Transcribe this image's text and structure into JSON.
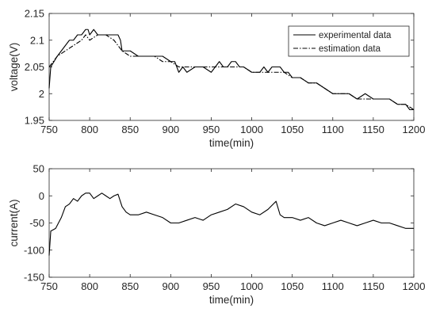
{
  "chart_data": [
    {
      "type": "line",
      "title": "",
      "xlabel": "time(min)",
      "ylabel": "voltage(V)",
      "xlim": [
        750,
        1200
      ],
      "ylim": [
        1.95,
        2.15
      ],
      "xticks": [
        750,
        800,
        850,
        900,
        950,
        1000,
        1050,
        1100,
        1150,
        1200
      ],
      "yticks": [
        1.95,
        2,
        2.05,
        2.1,
        2.15
      ],
      "ytick_labels": [
        "1.95",
        "2",
        "2.05",
        "2.1",
        "2.15"
      ],
      "grid": false,
      "legend_position": "top-right",
      "series": [
        {
          "name": "experimental data",
          "style": "solid",
          "color": "#000000",
          "points": [
            [
              750,
              2.01
            ],
            [
              752,
              2.05
            ],
            [
              756,
              2.06
            ],
            [
              760,
              2.07
            ],
            [
              765,
              2.08
            ],
            [
              770,
              2.09
            ],
            [
              775,
              2.1
            ],
            [
              780,
              2.1
            ],
            [
              785,
              2.11
            ],
            [
              790,
              2.11
            ],
            [
              795,
              2.12
            ],
            [
              798,
              2.12
            ],
            [
              800,
              2.11
            ],
            [
              805,
              2.12
            ],
            [
              810,
              2.11
            ],
            [
              815,
              2.11
            ],
            [
              820,
              2.11
            ],
            [
              825,
              2.11
            ],
            [
              830,
              2.11
            ],
            [
              835,
              2.11
            ],
            [
              838,
              2.1
            ],
            [
              840,
              2.08
            ],
            [
              850,
              2.08
            ],
            [
              860,
              2.07
            ],
            [
              870,
              2.07
            ],
            [
              880,
              2.07
            ],
            [
              890,
              2.07
            ],
            [
              900,
              2.06
            ],
            [
              905,
              2.06
            ],
            [
              910,
              2.04
            ],
            [
              915,
              2.05
            ],
            [
              920,
              2.04
            ],
            [
              930,
              2.05
            ],
            [
              940,
              2.05
            ],
            [
              950,
              2.04
            ],
            [
              955,
              2.05
            ],
            [
              960,
              2.06
            ],
            [
              965,
              2.05
            ],
            [
              970,
              2.05
            ],
            [
              975,
              2.06
            ],
            [
              980,
              2.06
            ],
            [
              985,
              2.05
            ],
            [
              990,
              2.05
            ],
            [
              1000,
              2.04
            ],
            [
              1005,
              2.04
            ],
            [
              1010,
              2.04
            ],
            [
              1015,
              2.05
            ],
            [
              1020,
              2.04
            ],
            [
              1025,
              2.05
            ],
            [
              1030,
              2.05
            ],
            [
              1035,
              2.05
            ],
            [
              1040,
              2.04
            ],
            [
              1045,
              2.04
            ],
            [
              1050,
              2.03
            ],
            [
              1060,
              2.03
            ],
            [
              1070,
              2.02
            ],
            [
              1080,
              2.02
            ],
            [
              1090,
              2.01
            ],
            [
              1100,
              2.0
            ],
            [
              1110,
              2.0
            ],
            [
              1120,
              2.0
            ],
            [
              1130,
              1.99
            ],
            [
              1140,
              2.0
            ],
            [
              1150,
              1.99
            ],
            [
              1160,
              1.99
            ],
            [
              1170,
              1.99
            ],
            [
              1180,
              1.98
            ],
            [
              1190,
              1.98
            ],
            [
              1195,
              1.97
            ],
            [
              1200,
              1.97
            ]
          ]
        },
        {
          "name": "estimation data",
          "style": "dashdot",
          "color": "#000000",
          "points": [
            [
              750,
              2.05
            ],
            [
              755,
              2.06
            ],
            [
              760,
              2.07
            ],
            [
              770,
              2.08
            ],
            [
              780,
              2.09
            ],
            [
              790,
              2.1
            ],
            [
              795,
              2.11
            ],
            [
              800,
              2.1
            ],
            [
              810,
              2.11
            ],
            [
              820,
              2.11
            ],
            [
              830,
              2.1
            ],
            [
              840,
              2.08
            ],
            [
              850,
              2.07
            ],
            [
              860,
              2.07
            ],
            [
              870,
              2.07
            ],
            [
              880,
              2.07
            ],
            [
              890,
              2.06
            ],
            [
              900,
              2.06
            ],
            [
              910,
              2.05
            ],
            [
              920,
              2.05
            ],
            [
              930,
              2.05
            ],
            [
              940,
              2.05
            ],
            [
              950,
              2.05
            ],
            [
              960,
              2.05
            ],
            [
              970,
              2.05
            ],
            [
              980,
              2.05
            ],
            [
              990,
              2.05
            ],
            [
              1000,
              2.04
            ],
            [
              1010,
              2.04
            ],
            [
              1020,
              2.04
            ],
            [
              1030,
              2.04
            ],
            [
              1040,
              2.04
            ],
            [
              1050,
              2.03
            ],
            [
              1060,
              2.03
            ],
            [
              1070,
              2.02
            ],
            [
              1080,
              2.02
            ],
            [
              1090,
              2.01
            ],
            [
              1100,
              2.0
            ],
            [
              1110,
              2.0
            ],
            [
              1120,
              2.0
            ],
            [
              1130,
              1.99
            ],
            [
              1140,
              1.99
            ],
            [
              1150,
              1.99
            ],
            [
              1160,
              1.99
            ],
            [
              1170,
              1.99
            ],
            [
              1180,
              1.98
            ],
            [
              1190,
              1.98
            ],
            [
              1200,
              1.97
            ]
          ]
        }
      ]
    },
    {
      "type": "line",
      "title": "",
      "xlabel": "time(min)",
      "ylabel": "current(A)",
      "xlim": [
        750,
        1200
      ],
      "ylim": [
        -150,
        50
      ],
      "xticks": [
        750,
        800,
        850,
        900,
        950,
        1000,
        1050,
        1100,
        1150,
        1200
      ],
      "yticks": [
        -150,
        -100,
        -50,
        0,
        50
      ],
      "ytick_labels": [
        "-150",
        "-100",
        "-50",
        "0",
        "50"
      ],
      "grid": false,
      "series": [
        {
          "name": "",
          "style": "solid",
          "color": "#000000",
          "points": [
            [
              750,
              -110
            ],
            [
              752,
              -65
            ],
            [
              758,
              -60
            ],
            [
              765,
              -40
            ],
            [
              770,
              -20
            ],
            [
              775,
              -15
            ],
            [
              780,
              -5
            ],
            [
              785,
              -10
            ],
            [
              790,
              0
            ],
            [
              795,
              5
            ],
            [
              800,
              5
            ],
            [
              805,
              -5
            ],
            [
              810,
              0
            ],
            [
              815,
              5
            ],
            [
              820,
              0
            ],
            [
              825,
              -5
            ],
            [
              830,
              0
            ],
            [
              835,
              3
            ],
            [
              840,
              -20
            ],
            [
              845,
              -30
            ],
            [
              850,
              -35
            ],
            [
              860,
              -35
            ],
            [
              870,
              -30
            ],
            [
              880,
              -35
            ],
            [
              890,
              -40
            ],
            [
              900,
              -50
            ],
            [
              910,
              -50
            ],
            [
              920,
              -45
            ],
            [
              930,
              -40
            ],
            [
              940,
              -45
            ],
            [
              950,
              -35
            ],
            [
              960,
              -30
            ],
            [
              970,
              -25
            ],
            [
              980,
              -15
            ],
            [
              990,
              -20
            ],
            [
              1000,
              -30
            ],
            [
              1010,
              -35
            ],
            [
              1020,
              -25
            ],
            [
              1030,
              -10
            ],
            [
              1035,
              -35
            ],
            [
              1040,
              -40
            ],
            [
              1050,
              -40
            ],
            [
              1060,
              -45
            ],
            [
              1070,
              -40
            ],
            [
              1080,
              -50
            ],
            [
              1090,
              -55
            ],
            [
              1100,
              -50
            ],
            [
              1110,
              -45
            ],
            [
              1120,
              -50
            ],
            [
              1130,
              -55
            ],
            [
              1140,
              -50
            ],
            [
              1150,
              -45
            ],
            [
              1160,
              -50
            ],
            [
              1170,
              -50
            ],
            [
              1180,
              -55
            ],
            [
              1190,
              -60
            ],
            [
              1200,
              -60
            ]
          ]
        }
      ]
    }
  ]
}
